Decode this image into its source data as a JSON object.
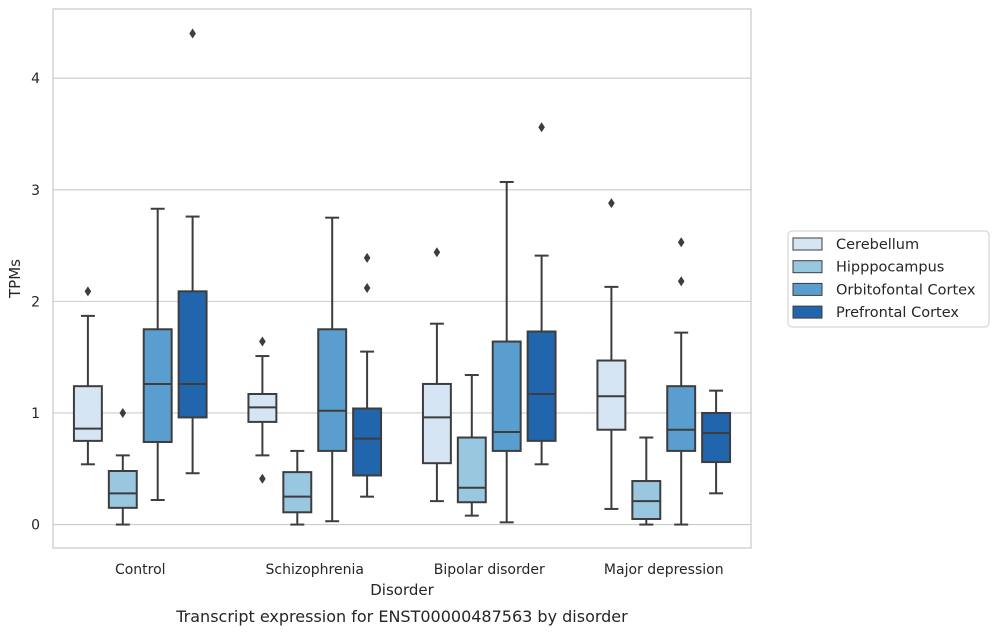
{
  "chart_data": {
    "type": "box",
    "title": "",
    "caption": "Transcript expression for ENST00000487563 by disorder",
    "xlabel": "Disorder",
    "ylabel": "TPMs",
    "ylim": [
      -0.21,
      4.62
    ],
    "yticks": [
      0,
      1,
      2,
      3,
      4
    ],
    "grid": true,
    "legend_position": "right",
    "categories": [
      "Control",
      "Schizophrenia",
      "Bipolar disorder",
      "Major depression"
    ],
    "series": [
      {
        "name": "Cerebellum",
        "color": "#d6e5f4",
        "boxes": [
          {
            "whisker_low": 0.54,
            "q1": 0.75,
            "median": 0.86,
            "q3": 1.24,
            "whisker_high": 1.87,
            "outliers": [
              2.09
            ]
          },
          {
            "whisker_low": 0.62,
            "q1": 0.92,
            "median": 1.05,
            "q3": 1.17,
            "whisker_high": 1.51,
            "outliers": [
              1.64,
              0.41
            ]
          },
          {
            "whisker_low": 0.21,
            "q1": 0.55,
            "median": 0.96,
            "q3": 1.26,
            "whisker_high": 1.8,
            "outliers": [
              2.44
            ]
          },
          {
            "whisker_low": 0.14,
            "q1": 0.85,
            "median": 1.15,
            "q3": 1.47,
            "whisker_high": 2.13,
            "outliers": [
              2.88
            ]
          }
        ]
      },
      {
        "name": "Hipppocampus",
        "color": "#9ac7e0",
        "boxes": [
          {
            "whisker_low": 0.0,
            "q1": 0.15,
            "median": 0.28,
            "q3": 0.48,
            "whisker_high": 0.62,
            "outliers": [
              1.0
            ]
          },
          {
            "whisker_low": 0.0,
            "q1": 0.11,
            "median": 0.25,
            "q3": 0.47,
            "whisker_high": 0.66,
            "outliers": []
          },
          {
            "whisker_low": 0.08,
            "q1": 0.2,
            "median": 0.33,
            "q3": 0.78,
            "whisker_high": 1.34,
            "outliers": []
          },
          {
            "whisker_low": 0.0,
            "q1": 0.05,
            "median": 0.21,
            "q3": 0.39,
            "whisker_high": 0.78,
            "outliers": []
          }
        ]
      },
      {
        "name": "Orbitofontal Cortex",
        "color": "#5a9ecf",
        "boxes": [
          {
            "whisker_low": 0.22,
            "q1": 0.74,
            "median": 1.26,
            "q3": 1.75,
            "whisker_high": 2.83,
            "outliers": []
          },
          {
            "whisker_low": 0.03,
            "q1": 0.66,
            "median": 1.02,
            "q3": 1.75,
            "whisker_high": 2.75,
            "outliers": []
          },
          {
            "whisker_low": 0.02,
            "q1": 0.66,
            "median": 0.83,
            "q3": 1.64,
            "whisker_high": 3.07,
            "outliers": []
          },
          {
            "whisker_low": 0.0,
            "q1": 0.66,
            "median": 0.85,
            "q3": 1.24,
            "whisker_high": 1.72,
            "outliers": [
              2.18,
              2.53
            ]
          }
        ]
      },
      {
        "name": "Prefrontal Cortex",
        "color": "#2166ac",
        "boxes": [
          {
            "whisker_low": 0.46,
            "q1": 0.96,
            "median": 1.26,
            "q3": 2.09,
            "whisker_high": 2.76,
            "outliers": [
              4.4
            ]
          },
          {
            "whisker_low": 0.25,
            "q1": 0.44,
            "median": 0.77,
            "q3": 1.04,
            "whisker_high": 1.55,
            "outliers": [
              2.12,
              2.39
            ]
          },
          {
            "whisker_low": 0.54,
            "q1": 0.75,
            "median": 1.17,
            "q3": 1.73,
            "whisker_high": 2.41,
            "outliers": [
              3.56
            ]
          },
          {
            "whisker_low": 0.28,
            "q1": 0.56,
            "median": 0.82,
            "q3": 1.0,
            "whisker_high": 1.2,
            "outliers": []
          }
        ]
      }
    ]
  }
}
